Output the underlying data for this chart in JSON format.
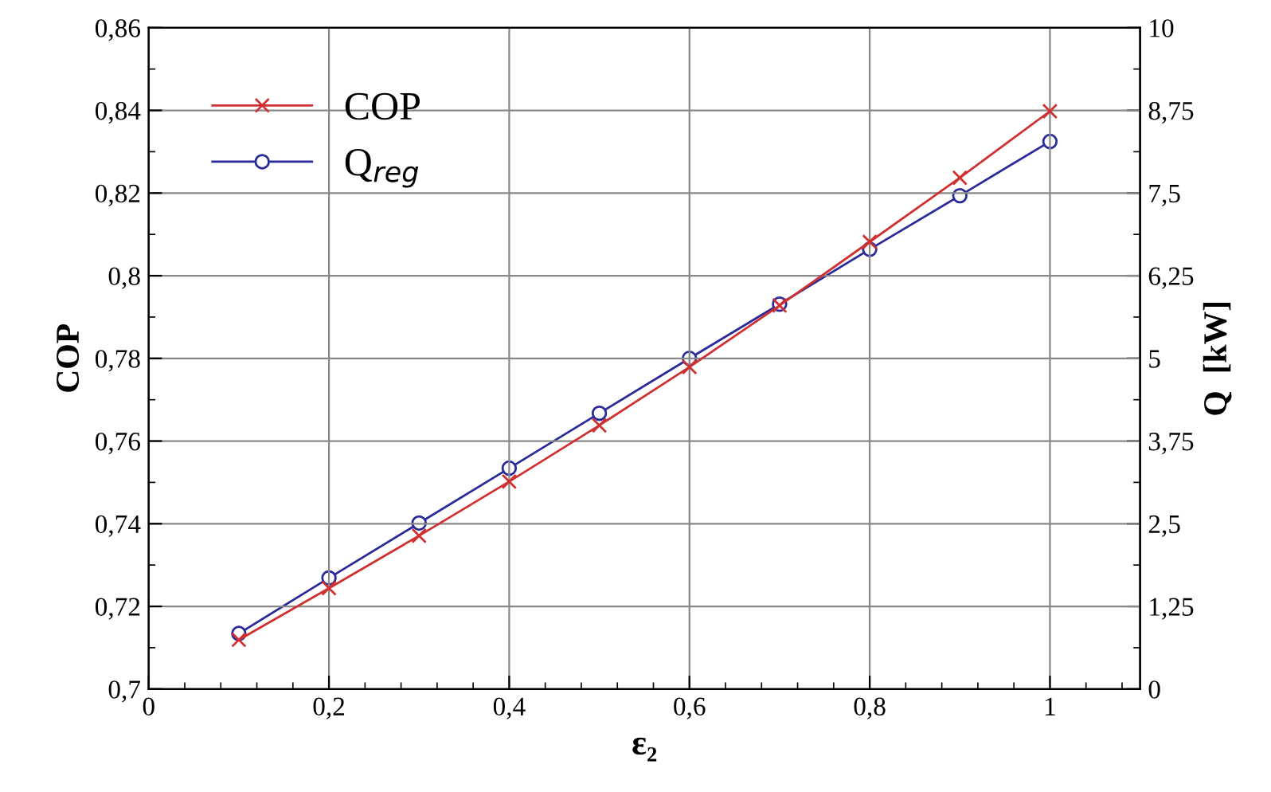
{
  "chart_data": {
    "type": "line",
    "xlabel": "ε₂",
    "ylabel": "COP",
    "y2label": "Q  [kW]",
    "x": [
      0.1,
      0.2,
      0.3,
      0.4,
      0.5,
      0.6,
      0.7,
      0.8,
      0.9,
      1.0
    ],
    "series": [
      {
        "name": "COP",
        "color": "#d03030",
        "marker": "cross",
        "values": [
          0.7119,
          0.7244,
          0.7371,
          0.7502,
          0.7638,
          0.7779,
          0.7928,
          0.8082,
          0.8237,
          0.8398
        ]
      },
      {
        "name": "Q$_{reg}$",
        "color": "#2a2a9a",
        "marker": "circle",
        "axis": "y2",
        "values": [
          0.84,
          1.68,
          2.51,
          3.34,
          4.17,
          5.0,
          5.82,
          6.65,
          7.46,
          8.28
        ]
      }
    ],
    "xlim": [
      0,
      1.1
    ],
    "xticks": [
      0,
      {
        "value": 0.2,
        "label": "0,2"
      },
      {
        "value": 0.4,
        "label": "0,4"
      },
      {
        "value": 0.6,
        "label": "0,6"
      },
      {
        "value": 0.8,
        "label": "0,8"
      },
      1
    ],
    "ylim": [
      0.7,
      0.86
    ],
    "yticks": [
      {
        "value": 0.7,
        "label": "0,7"
      },
      {
        "value": 0.72,
        "label": "0,72"
      },
      {
        "value": 0.74,
        "label": "0,74"
      },
      {
        "value": 0.76,
        "label": "0,76"
      },
      {
        "value": 0.78,
        "label": "0,78"
      },
      {
        "value": 0.8,
        "label": "0,8"
      },
      {
        "value": 0.82,
        "label": "0,82"
      },
      {
        "value": 0.84,
        "label": "0,84"
      },
      {
        "value": 0.86,
        "label": "0,86"
      }
    ],
    "y2lim": [
      0,
      10
    ],
    "y2ticks": [
      0,
      {
        "value": 1.25,
        "label": "1,25"
      },
      {
        "value": 2.5,
        "label": "2,5"
      },
      {
        "value": 3.75,
        "label": "3,75"
      },
      5,
      {
        "value": 6.25,
        "label": "6,25"
      },
      {
        "value": 7.5,
        "label": "7,5"
      },
      {
        "value": 8.75,
        "label": "8,75"
      },
      10
    ],
    "grid": true,
    "legend": "top left",
    "line_style": "solid"
  }
}
